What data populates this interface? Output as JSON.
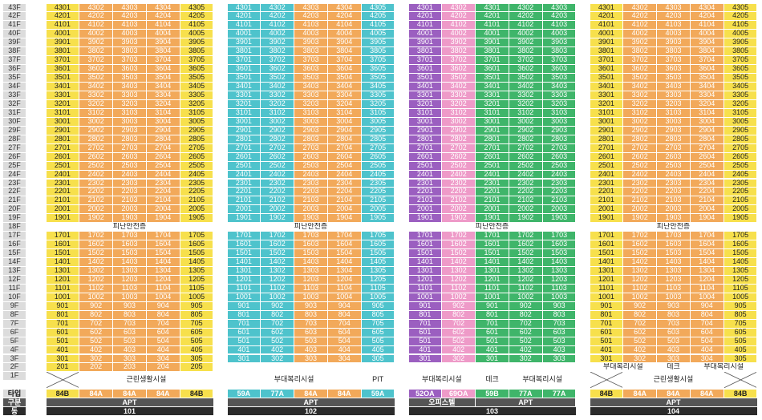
{
  "colors": {
    "yellow": "#f7e04c",
    "orange": "#f2a95a",
    "teal": "#4ec3cc",
    "purple": "#9b5fc0",
    "pink": "#ee9ac8",
    "green": "#3fb56a",
    "floor_label": "#dcdcdc",
    "gubun": "#555555",
    "dong": "#2b2b2b"
  },
  "floors": {
    "top": [
      "43F",
      "42F",
      "41F",
      "40F",
      "39F",
      "38F",
      "37F",
      "36F",
      "35F",
      "34F",
      "33F",
      "32F",
      "31F",
      "30F",
      "29F",
      "28F",
      "27F",
      "26F",
      "25F",
      "24F",
      "23F",
      "22F",
      "21F",
      "20F",
      "19F"
    ],
    "refuge": "18F",
    "low": [
      "17F",
      "16F",
      "15F",
      "14F",
      "13F",
      "12F",
      "11F",
      "10F",
      "9F",
      "8F",
      "7F",
      "6F",
      "5F",
      "4F",
      "3F",
      "2F",
      "1F"
    ]
  },
  "row_headers": {
    "type": "타입",
    "gubun": "구분",
    "dong": "동"
  },
  "refuge_label": "피난안전층",
  "buildings": [
    {
      "id": "101",
      "cols": [
        {
          "color": "yellow",
          "top_suffix": "01",
          "low_suffix": "01",
          "low_start_floor": 2,
          "type": "84B"
        },
        {
          "color": "orange",
          "top_suffix": "02",
          "low_suffix": "02",
          "low_start_floor": 2,
          "type": "84A"
        },
        {
          "color": "orange",
          "top_suffix": "03",
          "low_suffix": "03",
          "low_start_floor": 2,
          "type": "84A"
        },
        {
          "color": "orange",
          "top_suffix": "04",
          "low_suffix": "04",
          "low_start_floor": 2,
          "type": "84A"
        },
        {
          "color": "yellow",
          "top_suffix": "05",
          "low_suffix": "05",
          "low_start_floor": 2,
          "type": "84B"
        }
      ],
      "first_floor": [
        {
          "kind": "x",
          "span": 1
        },
        {
          "kind": "text",
          "span": 4,
          "label": "근린생활시설"
        }
      ],
      "gubun": [
        {
          "span": 5,
          "label": "APT"
        }
      ],
      "dong": "101"
    },
    {
      "id": "102",
      "cols": [
        {
          "color": "teal",
          "top_suffix": "01",
          "low_suffix": "01",
          "low_start_floor": 3,
          "type": "59A"
        },
        {
          "color": "teal",
          "top_suffix": "02",
          "low_suffix": "02",
          "low_start_floor": 3,
          "type": "77A"
        },
        {
          "color": "orange",
          "top_suffix": "03",
          "low_suffix": "03",
          "low_start_floor": 3,
          "type": "84A"
        },
        {
          "color": "orange",
          "top_suffix": "04",
          "low_suffix": "04",
          "low_start_floor": 3,
          "type": "84A"
        },
        {
          "color": "teal",
          "top_suffix": "05",
          "low_suffix": "05",
          "low_start_floor": 3,
          "type": "59A"
        }
      ],
      "two_floor": [
        {
          "kind": "blank",
          "span": 5
        }
      ],
      "first_floor": [
        {
          "kind": "text",
          "span": 4,
          "label": "부대복리시설"
        },
        {
          "kind": "text",
          "span": 1,
          "label": "PIT"
        }
      ],
      "gubun": [
        {
          "span": 5,
          "label": "APT"
        }
      ],
      "dong": "102"
    },
    {
      "id": "103",
      "cols": [
        {
          "color": "purple",
          "top_suffix": "01",
          "low_suffix": "01",
          "low_start_floor": 3,
          "type": "52OA"
        },
        {
          "color": "pink",
          "top_suffix": "02",
          "low_suffix": "02",
          "low_start_floor": 3,
          "type": "69OA"
        },
        {
          "color": "green",
          "top_suffix": "01",
          "low_suffix": "01",
          "low_start_floor": 3,
          "type": "59B"
        },
        {
          "color": "green",
          "top_suffix": "02",
          "low_suffix": "02",
          "low_start_floor": 3,
          "type": "77A"
        },
        {
          "color": "green",
          "top_suffix": "03",
          "low_suffix": "03",
          "low_start_floor": 3,
          "type": "77A"
        }
      ],
      "two_floor": [
        {
          "kind": "blank",
          "span": 5
        }
      ],
      "first_floor": [
        {
          "kind": "text",
          "span": 2,
          "label": "부대복리시설"
        },
        {
          "kind": "text",
          "span": 1,
          "label": "데크"
        },
        {
          "kind": "text",
          "span": 2,
          "label": "부대복리시설"
        }
      ],
      "gubun": [
        {
          "span": 2,
          "label": "오피스텔"
        },
        {
          "span": 3,
          "label": "APT"
        }
      ],
      "dong": "103"
    },
    {
      "id": "104",
      "cols": [
        {
          "color": "yellow",
          "top_suffix": "01",
          "low_suffix": "01",
          "low_start_floor": 2,
          "type": "84B"
        },
        {
          "color": "orange",
          "top_suffix": "02",
          "low_suffix": "02",
          "low_start_floor": 2,
          "type": "84A"
        },
        {
          "color": "orange",
          "top_suffix": "03",
          "low_suffix": "03",
          "low_start_floor": 2,
          "type": "84A"
        },
        {
          "color": "orange",
          "top_suffix": "04",
          "low_suffix": "04",
          "low_start_floor": 2,
          "type": "84A"
        },
        {
          "color": "yellow",
          "top_suffix": "05",
          "low_suffix": "05",
          "low_start_floor": 2,
          "type": "84B"
        }
      ],
      "two_floor_104": [
        {
          "kind": "text",
          "span": 2,
          "label": "부대복리시설"
        },
        {
          "kind": "text",
          "span": 1,
          "label": "데크"
        },
        {
          "kind": "text",
          "span": 2,
          "label": "부대복리시설"
        }
      ],
      "first_floor": [
        {
          "kind": "x",
          "span": 1
        },
        {
          "kind": "text",
          "span": 3,
          "label": "근린생활시설"
        },
        {
          "kind": "x",
          "span": 1
        }
      ],
      "gubun": [
        {
          "span": 5,
          "label": "APT"
        }
      ],
      "dong": "104"
    }
  ]
}
